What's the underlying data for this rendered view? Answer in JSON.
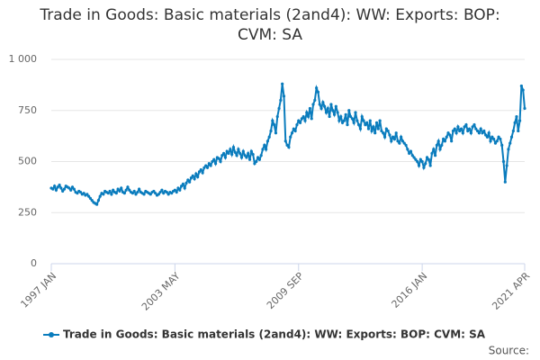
{
  "chart_data": {
    "type": "line",
    "title": "Trade in Goods: Basic materials (2and4): WW: Exports: BOP: CVM: SA",
    "source": "Source:",
    "legend": "bottom",
    "grid": true,
    "categories": [
      "1997 JAN",
      null,
      null,
      null,
      null,
      null,
      null,
      null,
      null,
      null,
      null,
      null,
      null,
      null,
      null,
      null,
      null,
      null,
      null,
      null,
      null,
      null,
      null,
      null,
      null,
      null,
      null,
      null,
      null,
      null,
      null,
      null,
      null,
      null,
      null,
      null,
      null,
      null,
      null,
      null,
      null,
      null,
      null,
      null,
      null,
      null,
      null,
      null,
      null,
      null,
      null,
      null,
      null,
      null,
      null,
      null,
      null,
      null,
      null,
      null,
      null,
      null,
      null,
      null,
      null,
      null,
      null,
      null,
      null,
      null,
      null,
      null,
      null,
      null,
      null,
      null,
      "2003 MAY",
      null,
      null,
      null,
      null,
      null,
      null,
      null,
      null,
      null,
      null,
      null,
      null,
      null,
      null,
      null,
      null,
      null,
      null,
      null,
      null,
      null,
      null,
      null,
      null,
      null,
      null,
      null,
      null,
      null,
      null,
      null,
      null,
      null,
      null,
      null,
      null,
      null,
      null,
      null,
      null,
      null,
      null,
      null,
      null,
      null,
      null,
      null,
      null,
      null,
      null,
      null,
      null,
      null,
      null,
      null,
      null,
      null,
      null,
      null,
      null,
      null,
      null,
      null,
      null,
      null,
      null,
      null,
      null,
      null,
      null,
      null,
      null,
      null,
      null,
      null,
      "2009 SEP",
      null,
      null,
      null,
      null,
      null,
      null,
      null,
      null,
      null,
      null,
      null,
      null,
      null,
      null,
      null,
      null,
      null,
      null,
      null,
      null,
      null,
      null,
      null,
      null,
      null,
      null,
      null,
      null,
      null,
      null,
      null,
      null,
      null,
      null,
      null,
      null,
      null,
      null,
      null,
      null,
      null,
      null,
      null,
      null,
      null,
      null,
      null,
      null,
      null,
      null,
      null,
      null,
      null,
      null,
      null,
      null,
      null,
      null,
      null,
      null,
      null,
      null,
      null,
      null,
      null,
      null,
      null,
      null,
      null,
      null,
      null,
      null,
      null,
      null,
      null,
      "2016 JAN",
      null,
      null,
      null,
      null,
      null,
      null,
      null,
      null,
      null,
      null,
      null,
      null,
      null,
      null,
      null,
      null,
      null,
      null,
      null,
      null,
      null,
      null,
      null,
      null,
      null,
      null,
      null,
      null,
      null,
      null,
      null,
      null,
      null,
      null,
      null,
      null,
      null,
      null,
      null,
      null,
      null,
      null,
      null,
      null,
      null,
      null,
      null,
      null,
      null,
      null,
      null,
      null,
      null,
      null,
      null,
      null,
      null,
      null,
      null,
      null,
      null,
      null,
      "2021 APR"
    ],
    "series": [
      {
        "name": "Trade in Goods: Basic materials (2and4): WW: Exports: BOP: CVM: SA",
        "color": "#0a7cbd",
        "values": [
          370,
          365,
          380,
          360,
          375,
          385,
          370,
          355,
          365,
          380,
          375,
          370,
          360,
          375,
          365,
          350,
          345,
          355,
          350,
          340,
          345,
          335,
          340,
          330,
          320,
          310,
          300,
          295,
          290,
          310,
          330,
          345,
          340,
          355,
          350,
          345,
          355,
          340,
          360,
          350,
          345,
          365,
          355,
          370,
          350,
          345,
          360,
          375,
          360,
          350,
          345,
          355,
          340,
          350,
          365,
          350,
          345,
          340,
          355,
          350,
          345,
          340,
          350,
          355,
          345,
          335,
          340,
          350,
          360,
          345,
          355,
          350,
          340,
          350,
          345,
          355,
          360,
          350,
          370,
          360,
          380,
          390,
          370,
          395,
          410,
          400,
          420,
          430,
          415,
          440,
          425,
          450,
          460,
          445,
          470,
          480,
          470,
          490,
          480,
          500,
          510,
          490,
          520,
          515,
          500,
          530,
          540,
          520,
          550,
          540,
          560,
          535,
          570,
          545,
          530,
          560,
          540,
          520,
          550,
          530,
          520,
          540,
          510,
          550,
          535,
          490,
          500,
          520,
          510,
          530,
          560,
          580,
          560,
          600,
          620,
          650,
          700,
          680,
          640,
          720,
          760,
          800,
          880,
          820,
          600,
          580,
          570,
          620,
          640,
          660,
          650,
          680,
          700,
          690,
          710,
          720,
          700,
          740,
          720,
          760,
          710,
          780,
          800,
          860,
          840,
          780,
          760,
          790,
          770,
          740,
          760,
          720,
          780,
          750,
          730,
          770,
          740,
          700,
          720,
          690,
          700,
          730,
          680,
          750,
          720,
          710,
          690,
          740,
          700,
          680,
          660,
          720,
          700,
          680,
          690,
          660,
          700,
          650,
          670,
          640,
          690,
          660,
          700,
          650,
          640,
          620,
          660,
          650,
          630,
          600,
          620,
          610,
          640,
          600,
          590,
          620,
          600,
          590,
          580,
          560,
          540,
          550,
          530,
          520,
          510,
          500,
          480,
          510,
          500,
          470,
          490,
          520,
          510,
          480,
          540,
          560,
          530,
          580,
          600,
          560,
          580,
          610,
          600,
          620,
          640,
          630,
          600,
          650,
          660,
          640,
          670,
          650,
          660,
          640,
          670,
          680,
          650,
          660,
          640,
          670,
          680,
          660,
          650,
          640,
          660,
          640,
          650,
          630,
          620,
          640,
          600,
          620,
          610,
          590,
          600,
          620,
          610,
          580,
          500,
          400,
          480,
          560,
          590,
          620,
          650,
          690,
          720,
          650,
          700,
          870,
          850,
          760
        ]
      }
    ],
    "ylim": [
      0,
      1000
    ],
    "yticks": [
      0,
      250,
      500,
      750,
      {
        "value": 1000,
        "label": "1 000"
      }
    ]
  }
}
